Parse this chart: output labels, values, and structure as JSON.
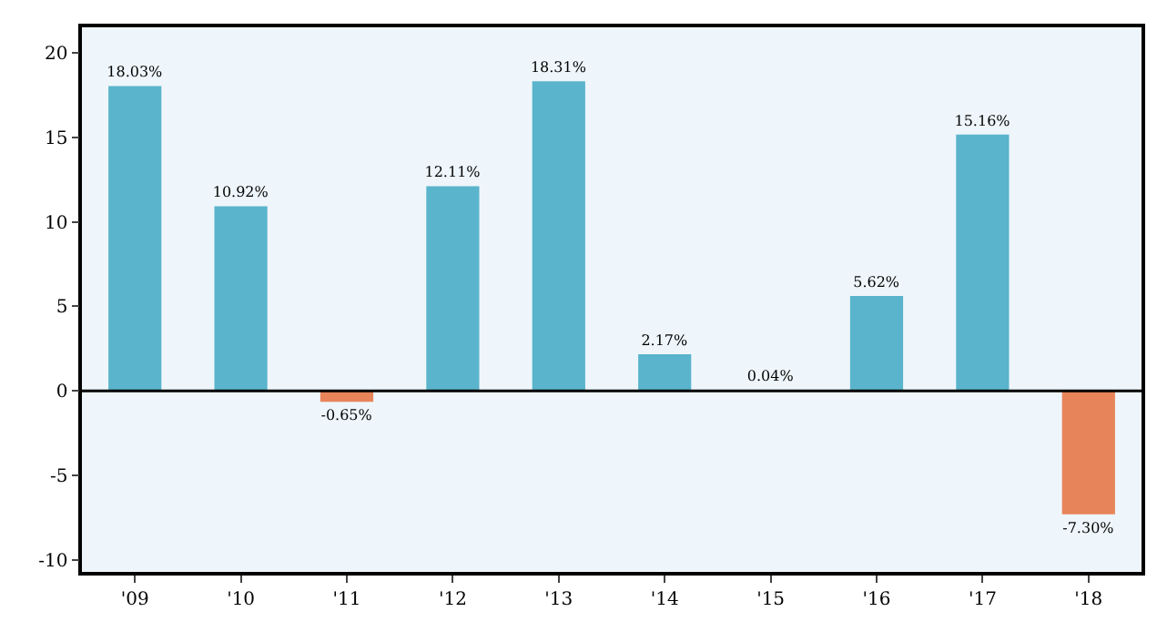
{
  "chart_data": {
    "type": "bar",
    "categories": [
      "'09",
      "'10",
      "'11",
      "'12",
      "'13",
      "'14",
      "'15",
      "'16",
      "'17",
      "'18"
    ],
    "values": [
      18.03,
      10.92,
      -0.65,
      12.11,
      18.31,
      2.17,
      0.04,
      5.62,
      15.16,
      -7.3
    ],
    "colors": [
      "#5ab4cc",
      "#5ab4cc",
      "#e8845a",
      "#5ab4cc",
      "#5ab4cc",
      "#5ab4cc",
      "#5ab4cc",
      "#5ab4cc",
      "#5ab4cc",
      "#e8845a"
    ],
    "value_labels": [
      "18.03%",
      "10.92%",
      "-0.65%",
      "12.11%",
      "18.31%",
      "2.17%",
      "0.04%",
      "5.62%",
      "15.16%",
      "-7.30%"
    ],
    "ylim": [
      -10.7,
      21.5
    ],
    "yticks": [
      -10,
      -5,
      0,
      5,
      10,
      15,
      20
    ],
    "ref_lines": [
      {
        "axis": "y",
        "value": 0,
        "color": "#000000"
      }
    ],
    "grid": false,
    "legend": false
  }
}
